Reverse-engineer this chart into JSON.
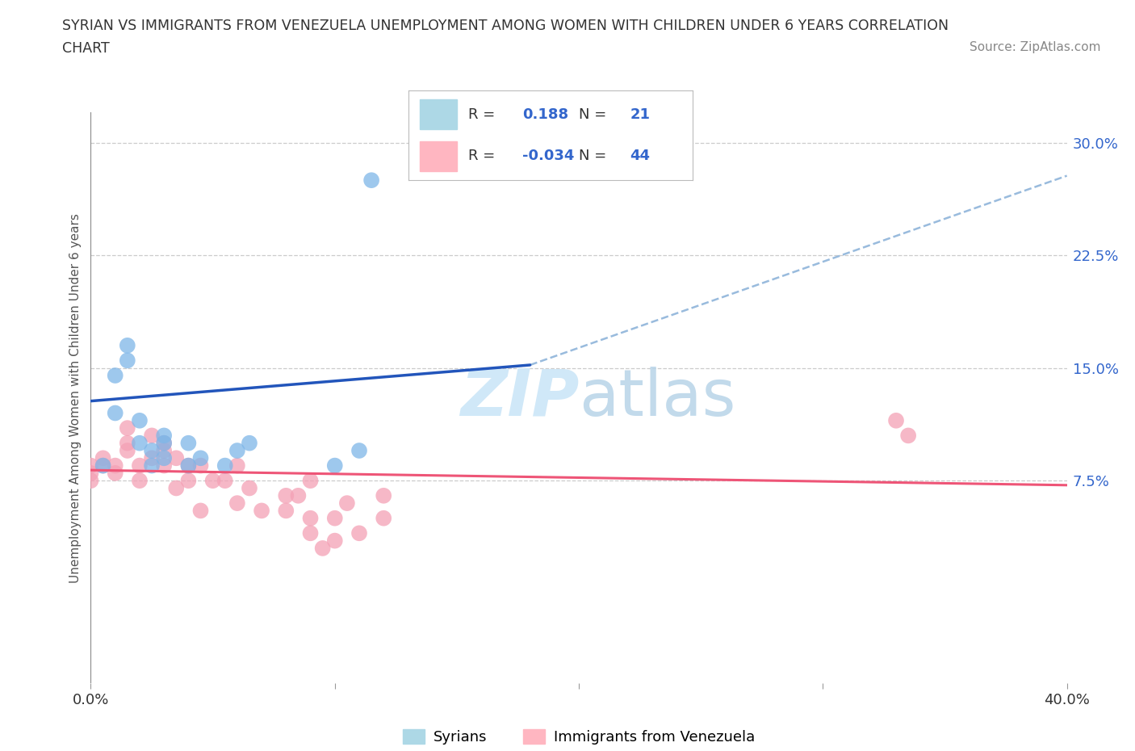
{
  "title_line1": "SYRIAN VS IMMIGRANTS FROM VENEZUELA UNEMPLOYMENT AMONG WOMEN WITH CHILDREN UNDER 6 YEARS CORRELATION",
  "title_line2": "CHART",
  "source_text": "Source: ZipAtlas.com",
  "ylabel": "Unemployment Among Women with Children Under 6 years",
  "xlim": [
    0.0,
    0.4
  ],
  "ylim": [
    -0.06,
    0.32
  ],
  "yticks_right": [
    0.075,
    0.15,
    0.225,
    0.3
  ],
  "ytick_labels_right": [
    "7.5%",
    "15.0%",
    "22.5%",
    "30.0%"
  ],
  "grid_yticks": [
    0.075,
    0.15,
    0.225,
    0.3
  ],
  "syrians_R": 0.188,
  "syrians_N": 21,
  "venezuela_R": -0.034,
  "venezuela_N": 44,
  "syrian_color": "#7EB6E8",
  "venezuela_color": "#F4A0B5",
  "syrian_line_color": "#2255BB",
  "venezuela_line_color": "#EE5577",
  "trend_line_dash_color": "#99BBDD",
  "background_color": "#FFFFFF",
  "watermark_color": "#D0E8F8",
  "legend_box_color_syrian": "#ADD8E6",
  "legend_box_color_venezuela": "#FFB6C1",
  "syrians_x": [
    0.005,
    0.01,
    0.01,
    0.015,
    0.015,
    0.02,
    0.02,
    0.025,
    0.025,
    0.03,
    0.03,
    0.03,
    0.04,
    0.04,
    0.045,
    0.055,
    0.06,
    0.065,
    0.1,
    0.11,
    0.115
  ],
  "syrians_y": [
    0.085,
    0.12,
    0.145,
    0.155,
    0.165,
    0.1,
    0.115,
    0.085,
    0.095,
    0.09,
    0.1,
    0.105,
    0.085,
    0.1,
    0.09,
    0.085,
    0.095,
    0.1,
    0.085,
    0.095,
    0.275
  ],
  "venezuela_x": [
    0.0,
    0.0,
    0.0,
    0.005,
    0.005,
    0.01,
    0.01,
    0.015,
    0.015,
    0.015,
    0.02,
    0.02,
    0.025,
    0.025,
    0.03,
    0.03,
    0.03,
    0.035,
    0.035,
    0.04,
    0.04,
    0.045,
    0.045,
    0.05,
    0.055,
    0.06,
    0.06,
    0.065,
    0.07,
    0.08,
    0.08,
    0.085,
    0.09,
    0.09,
    0.09,
    0.095,
    0.1,
    0.1,
    0.105,
    0.11,
    0.12,
    0.12,
    0.33,
    0.335
  ],
  "venezuela_y": [
    0.075,
    0.08,
    0.085,
    0.085,
    0.09,
    0.08,
    0.085,
    0.095,
    0.1,
    0.11,
    0.075,
    0.085,
    0.09,
    0.105,
    0.085,
    0.095,
    0.1,
    0.07,
    0.09,
    0.075,
    0.085,
    0.055,
    0.085,
    0.075,
    0.075,
    0.06,
    0.085,
    0.07,
    0.055,
    0.055,
    0.065,
    0.065,
    0.04,
    0.05,
    0.075,
    0.03,
    0.035,
    0.05,
    0.06,
    0.04,
    0.05,
    0.065,
    0.115,
    0.105
  ],
  "syrian_line_x": [
    0.0,
    0.18
  ],
  "syrian_line_y": [
    0.128,
    0.152
  ],
  "dash_line_x": [
    0.18,
    0.4
  ],
  "dash_line_y": [
    0.152,
    0.278
  ],
  "venezuela_line_x": [
    0.0,
    0.4
  ],
  "venezuela_line_y": [
    0.082,
    0.072
  ]
}
